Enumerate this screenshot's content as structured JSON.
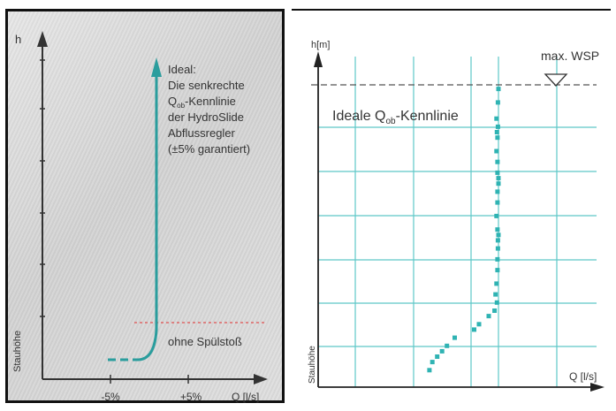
{
  "chart_data": [
    {
      "type": "line",
      "title": "",
      "xlabel": "Q [l/s]",
      "ylabel": "h",
      "ylabel_lower": "Stauhöhe",
      "x_ticks": [
        "-5%",
        "+5%"
      ],
      "annotation": {
        "lines": [
          "Ideal:",
          "Die senkrechte",
          "Q",
          "-Kennlinie",
          "der HydroSlide",
          "Abflussregler",
          "(±5% garantiert)"
        ],
        "sub": "ob"
      },
      "threshold_label": "ohne Spülstoß",
      "colors": {
        "curve": "#2a9d9d",
        "threshold": "#e05050",
        "axis": "#333333"
      }
    },
    {
      "type": "scatter",
      "title": "",
      "xlabel": "Q [l/s]",
      "ylabel": "h[m]",
      "ylabel_lower": "Stauhöhe",
      "curve_label_main": "Ideale Q",
      "curve_label_sub": "ob",
      "curve_label_tail": "-Kennlinie",
      "max_label": "max. WSP",
      "grid": true,
      "points": [
        {
          "x": 14.2,
          "y": 0.3
        },
        {
          "x": 13.6,
          "y": 0.6
        },
        {
          "x": 12.6,
          "y": 0.8
        },
        {
          "x": 11.6,
          "y": 1.0
        },
        {
          "x": 10.6,
          "y": 1.2
        },
        {
          "x": 9.0,
          "y": 1.5
        },
        {
          "x": 5.0,
          "y": 1.8
        },
        {
          "x": 4.0,
          "y": 2.0
        },
        {
          "x": 2.0,
          "y": 2.3
        },
        {
          "x": 0.8,
          "y": 2.5
        },
        {
          "x": 0.3,
          "y": 2.8
        },
        {
          "x": 0.6,
          "y": 3.1
        },
        {
          "x": 0.4,
          "y": 3.5
        },
        {
          "x": 0.2,
          "y": 4.0
        },
        {
          "x": 0.2,
          "y": 4.4
        },
        {
          "x": 0.1,
          "y": 4.8
        },
        {
          "x": 0.1,
          "y": 5.1
        },
        {
          "x": 0.0,
          "y": 5.3
        },
        {
          "x": 0.2,
          "y": 5.5
        },
        {
          "x": 0.4,
          "y": 6.0
        },
        {
          "x": 0.2,
          "y": 6.5
        },
        {
          "x": 0.2,
          "y": 6.9
        },
        {
          "x": 0.0,
          "y": 7.2
        },
        {
          "x": 0.0,
          "y": 7.4
        },
        {
          "x": 0.2,
          "y": 7.6
        },
        {
          "x": 0.2,
          "y": 8.0
        },
        {
          "x": 0.4,
          "y": 8.4
        },
        {
          "x": 0.2,
          "y": 8.9
        },
        {
          "x": 0.3,
          "y": 9.1
        },
        {
          "x": 0.1,
          "y": 9.3
        },
        {
          "x": 0.4,
          "y": 9.6
        },
        {
          "x": 0.1,
          "y": 10.2
        },
        {
          "x": 0.0,
          "y": 10.7
        }
      ],
      "colors": {
        "points": "#2fb3b3",
        "grid": "#5ec7c7",
        "axis": "#222222"
      }
    }
  ]
}
